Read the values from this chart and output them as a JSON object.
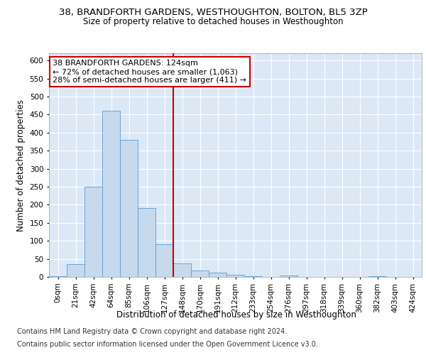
{
  "title1": "38, BRANDFORTH GARDENS, WESTHOUGHTON, BOLTON, BL5 3ZP",
  "title2": "Size of property relative to detached houses in Westhoughton",
  "xlabel": "Distribution of detached houses by size in Westhoughton",
  "ylabel": "Number of detached properties",
  "footnote1": "Contains HM Land Registry data © Crown copyright and database right 2024.",
  "footnote2": "Contains public sector information licensed under the Open Government Licence v3.0.",
  "xtick_labels": [
    "0sqm",
    "21sqm",
    "42sqm",
    "64sqm",
    "85sqm",
    "106sqm",
    "127sqm",
    "148sqm",
    "170sqm",
    "191sqm",
    "212sqm",
    "233sqm",
    "254sqm",
    "276sqm",
    "297sqm",
    "318sqm",
    "339sqm",
    "360sqm",
    "382sqm",
    "403sqm",
    "424sqm"
  ],
  "bar_heights": [
    2,
    35,
    250,
    460,
    380,
    190,
    90,
    37,
    17,
    11,
    5,
    2,
    0,
    3,
    0,
    0,
    0,
    0,
    2,
    0,
    0
  ],
  "bar_color": "#c7d9ed",
  "bar_edge_color": "#5b9bd5",
  "vline_x": 6,
  "vline_color": "#cc0000",
  "annotation_text": "38 BRANDFORTH GARDENS: 124sqm\n← 72% of detached houses are smaller (1,063)\n28% of semi-detached houses are larger (411) →",
  "annotation_box_color": "#ffffff",
  "annotation_box_edge_color": "#cc0000",
  "ylim": [
    0,
    620
  ],
  "ytick_values": [
    0,
    50,
    100,
    150,
    200,
    250,
    300,
    350,
    400,
    450,
    500,
    550,
    600
  ],
  "background_color": "#dce8f5",
  "grid_color": "#ffffff",
  "title1_fontsize": 9.5,
  "title2_fontsize": 8.5,
  "axis_label_fontsize": 8.5,
  "tick_fontsize": 7.5,
  "annotation_fontsize": 8,
  "footnote_fontsize": 7
}
